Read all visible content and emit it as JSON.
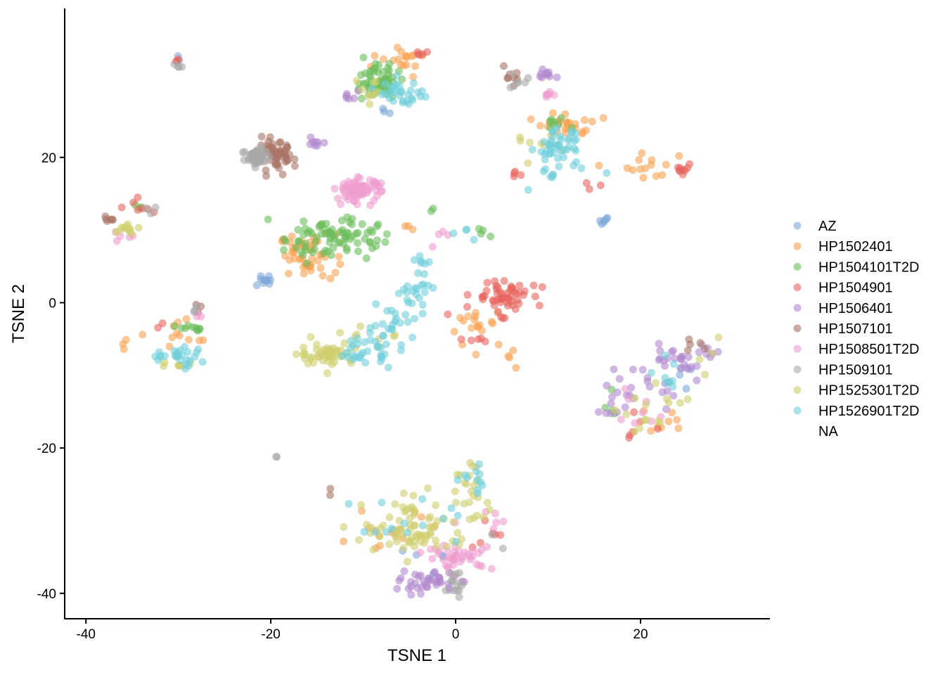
{
  "chart_data": {
    "type": "scatter",
    "title": "",
    "xlabel": "TSNE 1",
    "ylabel": "TSNE 2",
    "xlim": [
      -42.3,
      34
    ],
    "ylim": [
      -43.5,
      40.5
    ],
    "x_ticks": [
      -40,
      -20,
      0,
      20
    ],
    "y_ticks": [
      -40,
      -20,
      0,
      20
    ],
    "x_tick_labels": [
      "-40",
      "-20",
      "0",
      "20"
    ],
    "y_tick_labels": [
      "-40",
      "-20",
      "0",
      "20"
    ],
    "grid": false,
    "legend_position": "right",
    "point_opacity": 0.6,
    "series": [
      {
        "name": "AZ",
        "color": "#7da7d8",
        "clusters": [
          {
            "x": -20.5,
            "y": 3.0,
            "sx": 0.8,
            "sy": 0.4,
            "n": 10
          },
          {
            "x": 16.0,
            "y": 11.1,
            "sx": 0.4,
            "sy": 0.2,
            "n": 6
          },
          {
            "x": -8.0,
            "y": 26.5,
            "sx": 0.4,
            "sy": 0.4,
            "n": 3
          },
          {
            "x": -4.0,
            "y": -34.5,
            "sx": 2.5,
            "sy": 2.0,
            "n": 6
          },
          {
            "x": 25.0,
            "y": -10.0,
            "sx": 2.0,
            "sy": 1.5,
            "n": 4
          },
          {
            "x": -30.0,
            "y": 33.5,
            "sx": 0.2,
            "sy": 0.3,
            "n": 2
          }
        ]
      },
      {
        "name": "HP1502401",
        "color": "#f8a252",
        "clusters": [
          {
            "x": -16.0,
            "y": 6.5,
            "sx": 1.5,
            "sy": 1.5,
            "n": 50
          },
          {
            "x": -6.0,
            "y": 33.0,
            "sx": 1.5,
            "sy": 1.0,
            "n": 18
          },
          {
            "x": 12.0,
            "y": 24.5,
            "sx": 1.5,
            "sy": 0.8,
            "n": 25
          },
          {
            "x": 22.0,
            "y": 19.0,
            "sx": 2.0,
            "sy": 1.0,
            "n": 14
          },
          {
            "x": 2.5,
            "y": -3.0,
            "sx": 1.5,
            "sy": 2.0,
            "n": 18
          },
          {
            "x": -29.5,
            "y": -4.0,
            "sx": 1.5,
            "sy": 1.0,
            "n": 10
          },
          {
            "x": -35.0,
            "y": -6.0,
            "sx": 0.8,
            "sy": 0.8,
            "n": 4
          },
          {
            "x": -7.0,
            "y": -31.0,
            "sx": 3.0,
            "sy": 2.0,
            "n": 14
          },
          {
            "x": 22.5,
            "y": -16.0,
            "sx": 1.5,
            "sy": 1.0,
            "n": 8
          },
          {
            "x": 6.5,
            "y": -7.0,
            "sx": 0.5,
            "sy": 1.0,
            "n": 4
          },
          {
            "x": -5.0,
            "y": 10.5,
            "sx": 0.8,
            "sy": 0.3,
            "n": 3
          }
        ]
      },
      {
        "name": "HP1504101T2D",
        "color": "#6bbd5a",
        "clusters": [
          {
            "x": -13.5,
            "y": 9.0,
            "sx": 2.5,
            "sy": 1.5,
            "n": 85
          },
          {
            "x": -8.5,
            "y": 30.5,
            "sx": 1.2,
            "sy": 1.2,
            "n": 55
          },
          {
            "x": 10.5,
            "y": 24.5,
            "sx": 0.8,
            "sy": 0.4,
            "n": 8
          },
          {
            "x": -28.5,
            "y": -3.5,
            "sx": 0.8,
            "sy": 0.3,
            "n": 10
          },
          {
            "x": -34.5,
            "y": 13.2,
            "sx": 0.5,
            "sy": 0.3,
            "n": 3
          },
          {
            "x": 3.5,
            "y": 9.5,
            "sx": 0.8,
            "sy": 0.4,
            "n": 4
          },
          {
            "x": 17.0,
            "y": -14.0,
            "sx": 1.0,
            "sy": 1.5,
            "n": 4
          },
          {
            "x": -2.5,
            "y": 12.8,
            "sx": 0.2,
            "sy": 0.2,
            "n": 2
          }
        ]
      },
      {
        "name": "HP1504901",
        "color": "#e8645d",
        "clusters": [
          {
            "x": 5.0,
            "y": 1.0,
            "sx": 1.5,
            "sy": 1.2,
            "n": 55
          },
          {
            "x": -4.0,
            "y": 34.0,
            "sx": 0.5,
            "sy": 0.3,
            "n": 5
          },
          {
            "x": 24.5,
            "y": 18.5,
            "sx": 0.6,
            "sy": 0.6,
            "n": 9
          },
          {
            "x": -34.0,
            "y": 13.0,
            "sx": 1.0,
            "sy": 0.5,
            "n": 7
          },
          {
            "x": -32.0,
            "y": -3.2,
            "sx": 0.3,
            "sy": 0.2,
            "n": 2
          },
          {
            "x": 6.5,
            "y": 17.5,
            "sx": 0.6,
            "sy": 0.5,
            "n": 4
          },
          {
            "x": 15.0,
            "y": 16.0,
            "sx": 1.0,
            "sy": 0.5,
            "n": 3
          },
          {
            "x": 18.0,
            "y": -18.0,
            "sx": 1.5,
            "sy": 2.0,
            "n": 6
          },
          {
            "x": 4.0,
            "y": -31.0,
            "sx": 3.0,
            "sy": 2.0,
            "n": 6
          },
          {
            "x": 1.0,
            "y": -5.0,
            "sx": 2.0,
            "sy": 1.5,
            "n": 6
          },
          {
            "x": -30.0,
            "y": 33.5,
            "sx": 0.2,
            "sy": 0.2,
            "n": 3
          }
        ]
      },
      {
        "name": "HP1506401",
        "color": "#b089cf",
        "clusters": [
          {
            "x": -3.0,
            "y": -38.5,
            "sx": 1.5,
            "sy": 0.7,
            "n": 40
          },
          {
            "x": 25.0,
            "y": -7.5,
            "sx": 2.0,
            "sy": 1.2,
            "n": 30
          },
          {
            "x": 20.0,
            "y": -12.0,
            "sx": 2.0,
            "sy": 1.5,
            "n": 20
          },
          {
            "x": 10.0,
            "y": 31.5,
            "sx": 0.8,
            "sy": 0.3,
            "n": 10
          },
          {
            "x": -15.0,
            "y": 22.0,
            "sx": 0.5,
            "sy": 0.5,
            "n": 8
          },
          {
            "x": -12.0,
            "y": 28.5,
            "sx": 1.0,
            "sy": 0.5,
            "n": 6
          },
          {
            "x": 17.0,
            "y": -15.0,
            "sx": 1.0,
            "sy": 1.0,
            "n": 5
          }
        ]
      },
      {
        "name": "HP1507101",
        "color": "#a97566",
        "clusters": [
          {
            "x": -19.5,
            "y": 20.0,
            "sx": 1.0,
            "sy": 1.0,
            "n": 60
          },
          {
            "x": -38.0,
            "y": 11.5,
            "sx": 0.5,
            "sy": 0.2,
            "n": 6
          },
          {
            "x": 6.0,
            "y": 31.0,
            "sx": 0.8,
            "sy": 0.6,
            "n": 8
          },
          {
            "x": -28.0,
            "y": -1.0,
            "sx": 0.3,
            "sy": 0.5,
            "n": 3
          },
          {
            "x": 26.0,
            "y": -6.0,
            "sx": 0.8,
            "sy": 0.5,
            "n": 5
          },
          {
            "x": -13.5,
            "y": -26.0,
            "sx": 0.2,
            "sy": 0.2,
            "n": 2
          }
        ]
      },
      {
        "name": "HP1508501T2D",
        "color": "#ee9ccf",
        "clusters": [
          {
            "x": -10.5,
            "y": 15.5,
            "sx": 1.2,
            "sy": 0.8,
            "n": 75
          },
          {
            "x": 0.5,
            "y": -35.0,
            "sx": 1.8,
            "sy": 0.8,
            "n": 40
          },
          {
            "x": 10.0,
            "y": 28.5,
            "sx": 0.3,
            "sy": 0.3,
            "n": 6
          },
          {
            "x": -36.0,
            "y": 9.0,
            "sx": 0.8,
            "sy": 0.5,
            "n": 5
          },
          {
            "x": -28.0,
            "y": -1.5,
            "sx": 0.5,
            "sy": 0.5,
            "n": 3
          },
          {
            "x": 3.5,
            "y": -28.5,
            "sx": 1.5,
            "sy": 1.0,
            "n": 6
          },
          {
            "x": 20.0,
            "y": -14.0,
            "sx": 2.0,
            "sy": 2.0,
            "n": 8
          },
          {
            "x": -1.5,
            "y": 8.5,
            "sx": 1.0,
            "sy": 1.0,
            "n": 4
          }
        ]
      },
      {
        "name": "HP1509101",
        "color": "#a8a8a8",
        "clusters": [
          {
            "x": -21.5,
            "y": 20.0,
            "sx": 0.8,
            "sy": 0.8,
            "n": 40
          },
          {
            "x": 0.2,
            "y": -38.5,
            "sx": 0.5,
            "sy": 1.0,
            "n": 14
          },
          {
            "x": -30.0,
            "y": 33.0,
            "sx": 0.2,
            "sy": 0.3,
            "n": 4
          },
          {
            "x": 6.5,
            "y": 30.5,
            "sx": 1.0,
            "sy": 0.7,
            "n": 6
          },
          {
            "x": -19.5,
            "y": -21.2,
            "sx": 0.1,
            "sy": 0.1,
            "n": 2
          },
          {
            "x": -28.0,
            "y": -1.0,
            "sx": 0.5,
            "sy": 0.5,
            "n": 3
          },
          {
            "x": -33.5,
            "y": 13.0,
            "sx": 0.8,
            "sy": 0.5,
            "n": 3
          },
          {
            "x": 5.0,
            "y": -33.0,
            "sx": 0.5,
            "sy": 0.5,
            "n": 2
          }
        ]
      },
      {
        "name": "HP1525301T2D",
        "color": "#cfcf6e",
        "clusters": [
          {
            "x": -14.0,
            "y": -7.0,
            "sx": 1.5,
            "sy": 0.8,
            "n": 50
          },
          {
            "x": -4.0,
            "y": -31.0,
            "sx": 3.0,
            "sy": 2.0,
            "n": 75
          },
          {
            "x": 1.5,
            "y": -26.0,
            "sx": 1.0,
            "sy": 2.5,
            "n": 20
          },
          {
            "x": -35.5,
            "y": 10.0,
            "sx": 0.8,
            "sy": 0.6,
            "n": 12
          },
          {
            "x": -30.0,
            "y": -8.5,
            "sx": 1.0,
            "sy": 0.6,
            "n": 8
          },
          {
            "x": 22.0,
            "y": -15.0,
            "sx": 2.0,
            "sy": 1.5,
            "n": 15
          },
          {
            "x": -9.5,
            "y": 29.0,
            "sx": 1.2,
            "sy": 0.8,
            "n": 10
          },
          {
            "x": 9.0,
            "y": 22.0,
            "sx": 1.5,
            "sy": 1.0,
            "n": 8
          },
          {
            "x": -8.0,
            "y": -5.0,
            "sx": 1.5,
            "sy": 1.0,
            "n": 8
          },
          {
            "x": 27.5,
            "y": -9.0,
            "sx": 0.5,
            "sy": 2.0,
            "n": 4
          }
        ]
      },
      {
        "name": "HP1526901T2D",
        "color": "#6fcfdb",
        "clusters": [
          {
            "x": -10.0,
            "y": -6.5,
            "sx": 1.5,
            "sy": 1.0,
            "n": 30
          },
          {
            "x": -7.0,
            "y": -3.0,
            "sx": 1.5,
            "sy": 1.5,
            "n": 22
          },
          {
            "x": -4.5,
            "y": 1.5,
            "sx": 1.0,
            "sy": 1.5,
            "n": 22
          },
          {
            "x": -3.0,
            "y": 5.5,
            "sx": 0.8,
            "sy": 0.5,
            "n": 6
          },
          {
            "x": 11.0,
            "y": 21.5,
            "sx": 1.2,
            "sy": 1.0,
            "n": 40
          },
          {
            "x": 11.0,
            "y": 17.5,
            "sx": 1.5,
            "sy": 1.0,
            "n": 12
          },
          {
            "x": -6.0,
            "y": 29.0,
            "sx": 1.2,
            "sy": 0.8,
            "n": 30
          },
          {
            "x": -30.0,
            "y": -7.5,
            "sx": 2.0,
            "sy": 0.8,
            "n": 26
          },
          {
            "x": 2.5,
            "y": -24.5,
            "sx": 0.5,
            "sy": 1.0,
            "n": 10
          },
          {
            "x": 22.0,
            "y": -11.0,
            "sx": 2.0,
            "sy": 1.5,
            "n": 8
          },
          {
            "x": -4.0,
            "y": -31.0,
            "sx": 3.5,
            "sy": 2.0,
            "n": 15
          },
          {
            "x": 1.0,
            "y": 9.0,
            "sx": 1.5,
            "sy": 1.0,
            "n": 4
          }
        ]
      }
    ],
    "legend": [
      {
        "label": "AZ",
        "color": "#7da7d8"
      },
      {
        "label": "HP1502401",
        "color": "#f8a252"
      },
      {
        "label": "HP1504101T2D",
        "color": "#6bbd5a"
      },
      {
        "label": "HP1504901",
        "color": "#e8645d"
      },
      {
        "label": "HP1506401",
        "color": "#b089cf"
      },
      {
        "label": "HP1507101",
        "color": "#a97566"
      },
      {
        "label": "HP1508501T2D",
        "color": "#ee9ccf"
      },
      {
        "label": "HP1509101",
        "color": "#a8a8a8"
      },
      {
        "label": "HP1525301T2D",
        "color": "#cfcf6e"
      },
      {
        "label": "HP1526901T2D",
        "color": "#6fcfdb"
      },
      {
        "label": "NA",
        "color": ""
      }
    ]
  }
}
